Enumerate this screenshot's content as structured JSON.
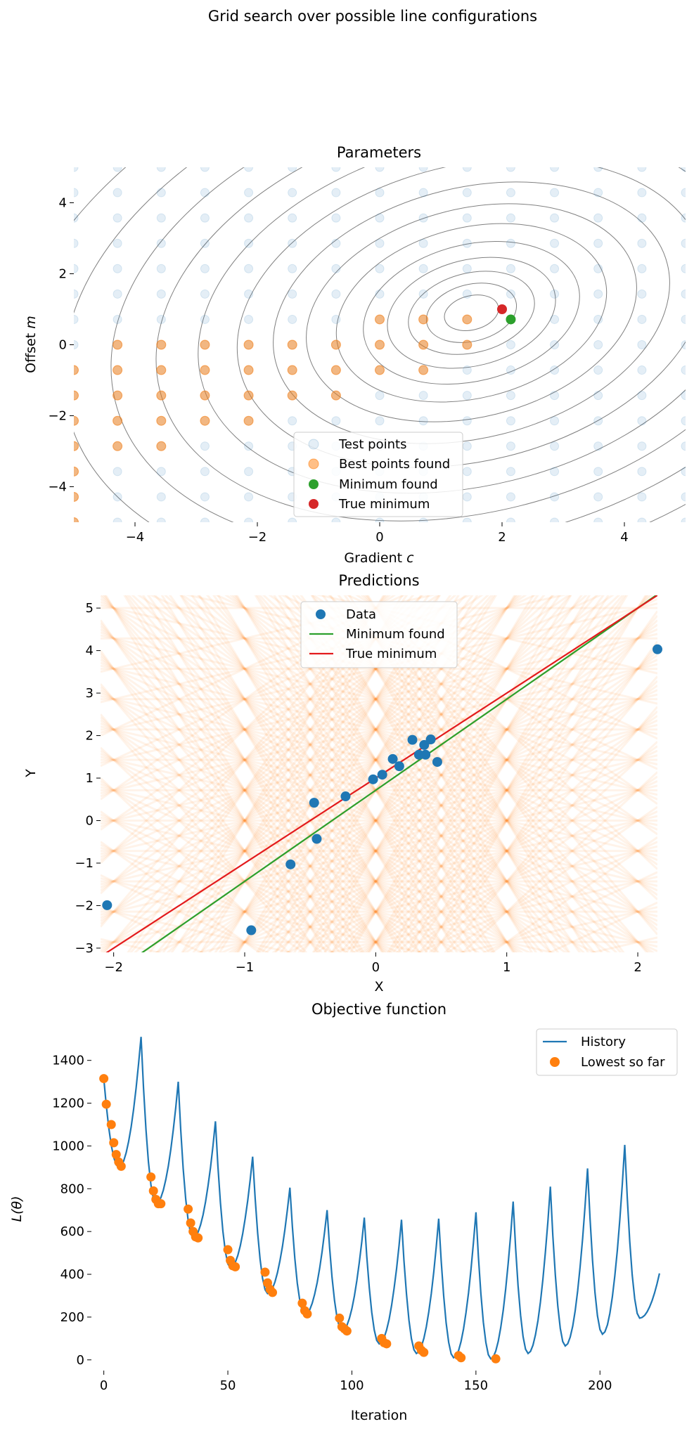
{
  "figure": {
    "title": "Grid search over possible line configurations"
  },
  "colors": {
    "test_points": "#1f77b4",
    "best_points": "#ff7f0e",
    "minimum_found": "#2ca02c",
    "true_minimum": "#d62728",
    "data": "#1f77b4",
    "history": "#1f77b4",
    "lowest": "#ff7f0e",
    "contour": "#808080",
    "candidate_lines": "#ff7f0e"
  },
  "chart_data": [
    {
      "id": "parameters",
      "type": "scatter",
      "title": "Parameters",
      "xlabel": "Gradient",
      "xlabel_symbol": "c",
      "ylabel": "Offset",
      "ylabel_symbol": "m",
      "xlim": [
        -5,
        5
      ],
      "ylim": [
        -5,
        5
      ],
      "xticks": [
        -4,
        -2,
        0,
        2,
        4
      ],
      "yticks": [
        -4,
        -2,
        0,
        2,
        4
      ],
      "tick_labels_x": [
        "−4",
        "−2",
        "0",
        "2",
        "4"
      ],
      "tick_labels_y": [
        "−4",
        "−2",
        "0",
        "2",
        "4"
      ],
      "grid": false,
      "legend_position": "bottom-center",
      "legend": [
        "Test points",
        "Best points found",
        "Minimum found",
        "True minimum"
      ],
      "contours": {
        "center": [
          1.5,
          0.9
        ],
        "ratio_y_to_x": 0.62,
        "tilt_deg": 14,
        "semi_axis_x": [
          0.45,
          0.75,
          1.05,
          1.4,
          1.8,
          2.25,
          2.75,
          3.3,
          3.9,
          4.55,
          5.25,
          6.0,
          6.8,
          7.7,
          8.6
        ]
      },
      "grid_points": {
        "c_values": [
          -5.0,
          -4.286,
          -3.571,
          -2.857,
          -2.143,
          -1.429,
          -0.714,
          0.0,
          0.714,
          1.429,
          2.143,
          2.857,
          3.571,
          4.286,
          5.0
        ],
        "m_values": [
          -5.0,
          -4.286,
          -3.571,
          -2.857,
          -2.143,
          -1.429,
          -0.714,
          0.0,
          0.714,
          1.429,
          2.143,
          2.857,
          3.571,
          4.286,
          5.0
        ]
      },
      "best_points": [
        [
          -5.0,
          -5.0
        ],
        [
          -5.0,
          -4.286
        ],
        [
          -5.0,
          -3.571
        ],
        [
          -5.0,
          -2.857
        ],
        [
          -5.0,
          -2.143
        ],
        [
          -5.0,
          -1.429
        ],
        [
          -5.0,
          -0.714
        ],
        [
          -4.286,
          -2.857
        ],
        [
          -4.286,
          -2.143
        ],
        [
          -4.286,
          -1.429
        ],
        [
          -4.286,
          -0.714
        ],
        [
          -4.286,
          0.0
        ],
        [
          -3.571,
          -2.857
        ],
        [
          -3.571,
          -2.143
        ],
        [
          -3.571,
          -1.429
        ],
        [
          -3.571,
          -0.714
        ],
        [
          -3.571,
          0.0
        ],
        [
          -2.857,
          -2.143
        ],
        [
          -2.857,
          -1.429
        ],
        [
          -2.857,
          -0.714
        ],
        [
          -2.857,
          0.0
        ],
        [
          -2.143,
          -2.143
        ],
        [
          -2.143,
          -1.429
        ],
        [
          -2.143,
          -0.714
        ],
        [
          -2.143,
          0.0
        ],
        [
          -1.429,
          -1.429
        ],
        [
          -1.429,
          -0.714
        ],
        [
          -1.429,
          0.0
        ],
        [
          -0.714,
          -1.429
        ],
        [
          -0.714,
          -0.714
        ],
        [
          -0.714,
          0.0
        ],
        [
          0.0,
          -0.714
        ],
        [
          0.0,
          0.0
        ],
        [
          0.0,
          0.714
        ],
        [
          0.714,
          -0.714
        ],
        [
          0.714,
          0.0
        ],
        [
          0.714,
          0.714
        ],
        [
          1.429,
          0.0
        ],
        [
          1.429,
          0.714
        ]
      ],
      "minimum_found": [
        2.143,
        0.714
      ],
      "true_minimum": [
        2.0,
        1.0
      ]
    },
    {
      "id": "predictions",
      "type": "scatter",
      "title": "Predictions",
      "xlabel": "X",
      "ylabel": "Y",
      "xlim": [
        -2.1,
        2.15
      ],
      "ylim": [
        -3.1,
        5.3
      ],
      "xticks": [
        -2,
        -1,
        0,
        1,
        2
      ],
      "yticks": [
        -3,
        -2,
        -1,
        0,
        1,
        2,
        3,
        4,
        5
      ],
      "tick_labels_x": [
        "−2",
        "−1",
        "0",
        "1",
        "2"
      ],
      "tick_labels_y": [
        "−3",
        "−2",
        "−1",
        "0",
        "1",
        "2",
        "3",
        "4",
        "5"
      ],
      "grid": false,
      "legend_position": "top-center",
      "legend": [
        "Data",
        "Minimum found",
        "True minimum"
      ],
      "data_x": [
        -2.05,
        -0.95,
        -0.65,
        -0.47,
        -0.45,
        -0.23,
        -0.02,
        0.05,
        0.13,
        0.18,
        0.28,
        0.33,
        0.37,
        0.38,
        0.42,
        0.47,
        2.15
      ],
      "data_y": [
        -1.99,
        -2.58,
        -1.03,
        0.42,
        -0.43,
        0.57,
        0.97,
        1.08,
        1.45,
        1.28,
        1.9,
        1.55,
        1.78,
        1.55,
        1.91,
        1.38,
        4.03
      ],
      "lines": [
        {
          "name": "Minimum found",
          "slope": 2.143,
          "intercept": 0.714
        },
        {
          "name": "True minimum",
          "slope": 2.0,
          "intercept": 1.0
        }
      ]
    },
    {
      "id": "objective",
      "type": "line",
      "title": "Objective function",
      "xlabel": "Iteration",
      "ylabel": "L(θ)",
      "xlim": [
        -5,
        226
      ],
      "ylim": [
        -50,
        1560
      ],
      "xticks": [
        0,
        50,
        100,
        150,
        200
      ],
      "yticks": [
        0,
        200,
        400,
        600,
        800,
        1000,
        1200,
        1400
      ],
      "tick_labels_x": [
        "0",
        "50",
        "100",
        "150",
        "200"
      ],
      "tick_labels_y": [
        "0",
        "200",
        "400",
        "600",
        "800",
        "1000",
        "1200",
        "1400"
      ],
      "grid": false,
      "legend_position": "top-right",
      "legend": [
        "History",
        "Lowest so far"
      ],
      "cycle_length": 15,
      "num_cycles": 15,
      "cycle_minima": [
        900,
        730,
        570,
        430,
        310,
        210,
        135,
        75,
        30,
        10,
        5,
        30,
        65,
        120,
        195
      ],
      "cycle_peaks": [
        1510,
        1300,
        1115,
        950,
        805,
        700,
        665,
        655,
        660,
        690,
        740,
        810,
        895,
        1005,
        460
      ],
      "history_start": 1315,
      "lowest_so_far": [
        [
          0,
          1315
        ],
        [
          1,
          1195
        ],
        [
          3,
          1100
        ],
        [
          4,
          1015
        ],
        [
          5,
          960
        ],
        [
          6,
          925
        ],
        [
          7,
          905
        ],
        [
          19,
          855
        ],
        [
          20,
          790
        ],
        [
          21,
          750
        ],
        [
          22,
          730
        ],
        [
          23,
          730
        ],
        [
          34,
          705
        ],
        [
          35,
          640
        ],
        [
          36,
          600
        ],
        [
          37,
          575
        ],
        [
          38,
          570
        ],
        [
          50,
          515
        ],
        [
          51,
          465
        ],
        [
          52,
          440
        ],
        [
          53,
          435
        ],
        [
          65,
          410
        ],
        [
          66,
          360
        ],
        [
          67,
          330
        ],
        [
          68,
          315
        ],
        [
          80,
          265
        ],
        [
          81,
          230
        ],
        [
          82,
          215
        ],
        [
          95,
          195
        ],
        [
          96,
          155
        ],
        [
          97,
          145
        ],
        [
          98,
          135
        ],
        [
          112,
          100
        ],
        [
          113,
          80
        ],
        [
          114,
          75
        ],
        [
          127,
          65
        ],
        [
          128,
          45
        ],
        [
          129,
          35
        ],
        [
          143,
          20
        ],
        [
          144,
          10
        ],
        [
          158,
          5
        ]
      ]
    }
  ]
}
